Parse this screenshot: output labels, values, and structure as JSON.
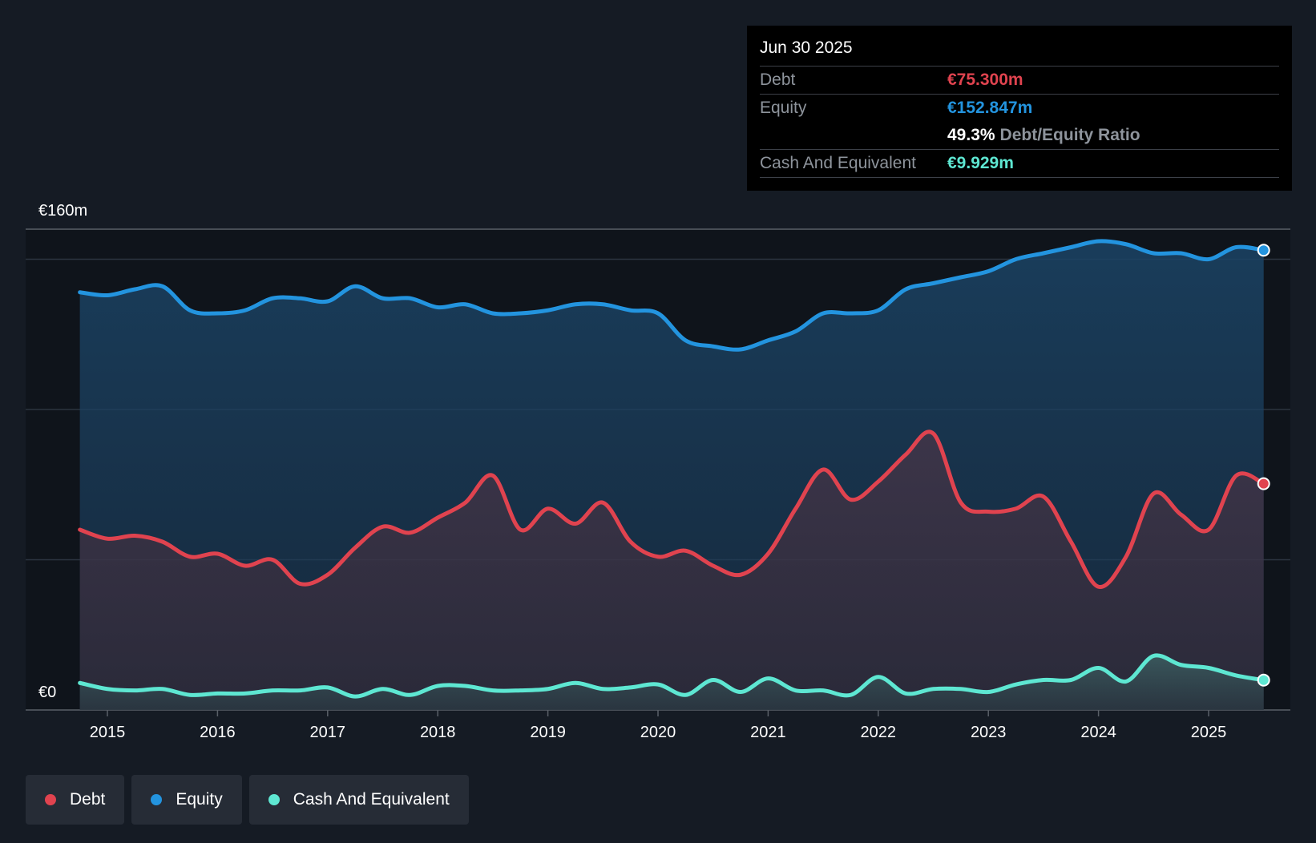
{
  "tooltip": {
    "date": "Jun 30 2025",
    "debt_label": "Debt",
    "debt_value": "€75.300m",
    "equity_label": "Equity",
    "equity_value": "€152.847m",
    "ratio_pct": "49.3%",
    "ratio_label": "Debt/Equity Ratio",
    "cash_label": "Cash And Equivalent",
    "cash_value": "€9.929m"
  },
  "legend": {
    "debt": "Debt",
    "equity": "Equity",
    "cash": "Cash And Equivalent"
  },
  "colors": {
    "debt": "#e0434f",
    "equity": "#2394df",
    "cash": "#5ee7d2",
    "background": "#151b24"
  },
  "chart_data": {
    "type": "area",
    "title": "",
    "xlabel": "",
    "ylabel": "",
    "y_top_label": "€160m",
    "y_bottom_label": "€0",
    "ylim": [
      0,
      160
    ],
    "xlim": [
      2014.75,
      2025.5
    ],
    "x_ticks": [
      "2015",
      "2016",
      "2017",
      "2018",
      "2019",
      "2020",
      "2021",
      "2022",
      "2023",
      "2024",
      "2025"
    ],
    "series": [
      {
        "name": "Equity",
        "color": "#2394df",
        "x": [
          2014.75,
          2015.0,
          2015.25,
          2015.5,
          2015.75,
          2016.0,
          2016.25,
          2016.5,
          2016.75,
          2017.0,
          2017.25,
          2017.5,
          2017.75,
          2018.0,
          2018.25,
          2018.5,
          2018.75,
          2019.0,
          2019.25,
          2019.5,
          2019.75,
          2020.0,
          2020.25,
          2020.5,
          2020.75,
          2021.0,
          2021.25,
          2021.5,
          2021.75,
          2022.0,
          2022.25,
          2022.5,
          2022.75,
          2023.0,
          2023.25,
          2023.5,
          2023.75,
          2024.0,
          2024.25,
          2024.5,
          2024.75,
          2025.0,
          2025.25,
          2025.5
        ],
        "values": [
          139,
          138,
          140,
          141,
          133,
          132,
          133,
          137,
          137,
          136,
          141,
          137,
          137,
          134,
          135,
          132,
          132,
          133,
          135,
          135,
          133,
          132,
          123,
          121,
          120,
          123,
          126,
          132,
          132,
          133,
          140,
          142,
          144,
          146,
          150,
          152,
          154,
          156,
          155,
          152,
          152,
          150,
          154,
          153
        ]
      },
      {
        "name": "Debt",
        "color": "#e0434f",
        "x": [
          2014.75,
          2015.0,
          2015.25,
          2015.5,
          2015.75,
          2016.0,
          2016.25,
          2016.5,
          2016.75,
          2017.0,
          2017.25,
          2017.5,
          2017.75,
          2018.0,
          2018.25,
          2018.5,
          2018.75,
          2019.0,
          2019.25,
          2019.5,
          2019.75,
          2020.0,
          2020.25,
          2020.5,
          2020.75,
          2021.0,
          2021.25,
          2021.5,
          2021.75,
          2022.0,
          2022.25,
          2022.5,
          2022.75,
          2023.0,
          2023.25,
          2023.5,
          2023.75,
          2024.0,
          2024.25,
          2024.5,
          2024.75,
          2025.0,
          2025.25,
          2025.5
        ],
        "values": [
          60,
          57,
          58,
          56,
          51,
          52,
          48,
          50,
          42,
          45,
          54,
          61,
          59,
          64,
          69,
          78,
          60,
          67,
          62,
          69,
          56,
          51,
          53,
          48,
          45,
          52,
          67,
          80,
          70,
          76,
          85,
          92,
          69,
          66,
          67,
          71,
          56,
          41,
          51,
          72,
          65,
          60,
          78,
          75.3
        ]
      },
      {
        "name": "Cash And Equivalent",
        "color": "#5ee7d2",
        "x": [
          2014.75,
          2015.0,
          2015.25,
          2015.5,
          2015.75,
          2016.0,
          2016.25,
          2016.5,
          2016.75,
          2017.0,
          2017.25,
          2017.5,
          2017.75,
          2018.0,
          2018.25,
          2018.5,
          2018.75,
          2019.0,
          2019.25,
          2019.5,
          2019.75,
          2020.0,
          2020.25,
          2020.5,
          2020.75,
          2021.0,
          2021.25,
          2021.5,
          2021.75,
          2022.0,
          2022.25,
          2022.5,
          2022.75,
          2023.0,
          2023.25,
          2023.5,
          2023.75,
          2024.0,
          2024.25,
          2024.5,
          2024.75,
          2025.0,
          2025.25,
          2025.5
        ],
        "values": [
          9,
          7,
          6.5,
          7,
          5,
          5.5,
          5.5,
          6.5,
          6.5,
          7.5,
          4.5,
          7,
          5,
          8,
          8,
          6.5,
          6.5,
          7,
          9,
          7,
          7.5,
          8.5,
          5,
          10,
          6,
          10.5,
          6.5,
          6.5,
          5,
          11,
          5.5,
          7,
          7,
          6,
          8.5,
          10,
          10,
          14,
          9.5,
          18,
          15,
          14,
          11.5,
          9.929
        ]
      }
    ]
  }
}
